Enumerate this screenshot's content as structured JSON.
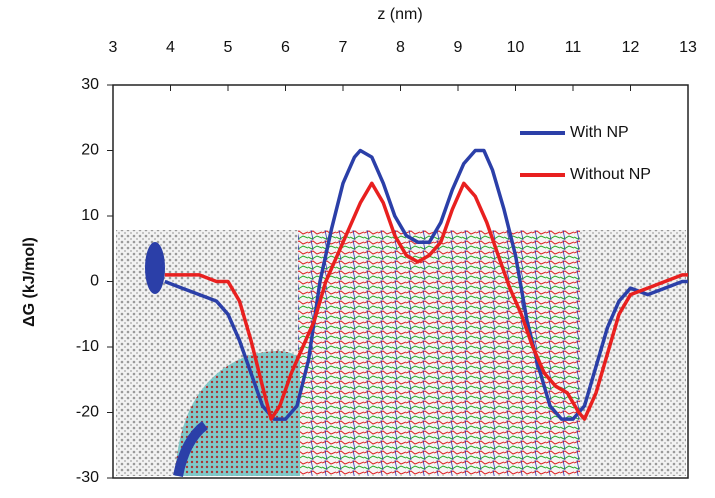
{
  "chart_data": {
    "type": "line",
    "x_label": "z (nm)",
    "y_label": "ΔG (kJ/mol)",
    "xlim": [
      3,
      13
    ],
    "xticks": [
      3,
      4,
      5,
      6,
      7,
      8,
      9,
      10,
      11,
      12,
      13
    ],
    "ylim": [
      -30,
      30
    ],
    "yticks": [
      30,
      20,
      10,
      0,
      -10,
      -20,
      -30
    ],
    "legend": "top-right",
    "series": [
      {
        "name": "With NP",
        "color": "#2b3fa8",
        "x": [
          3.9,
          4.2,
          4.5,
          4.8,
          5.0,
          5.2,
          5.4,
          5.6,
          5.8,
          6.0,
          6.2,
          6.4,
          6.6,
          6.8,
          7.0,
          7.2,
          7.3,
          7.5,
          7.7,
          7.9,
          8.1,
          8.3,
          8.5,
          8.7,
          8.9,
          9.1,
          9.3,
          9.45,
          9.6,
          9.8,
          10.0,
          10.2,
          10.4,
          10.6,
          10.8,
          11.0,
          11.2,
          11.4,
          11.6,
          11.8,
          12.0,
          12.3,
          12.6,
          12.9,
          13.0
        ],
        "values": [
          0,
          -1,
          -2,
          -3,
          -5,
          -9,
          -14,
          -19,
          -21,
          -21,
          -19,
          -12,
          0,
          8,
          15,
          19,
          20,
          19,
          15,
          10,
          7,
          6,
          6,
          9,
          14,
          18,
          20,
          20,
          17,
          11,
          4,
          -6,
          -13,
          -19,
          -21,
          -21,
          -19,
          -13,
          -7,
          -3,
          -1,
          -2,
          -1,
          0,
          0
        ]
      },
      {
        "name": "Without NP",
        "color": "#e8201f",
        "x": [
          3.9,
          4.2,
          4.5,
          4.8,
          5.0,
          5.2,
          5.4,
          5.6,
          5.75,
          5.9,
          6.1,
          6.3,
          6.5,
          6.7,
          6.9,
          7.1,
          7.3,
          7.5,
          7.7,
          7.9,
          8.1,
          8.3,
          8.5,
          8.7,
          8.9,
          9.1,
          9.3,
          9.5,
          9.7,
          9.9,
          10.1,
          10.3,
          10.5,
          10.7,
          10.9,
          11.1,
          11.2,
          11.4,
          11.6,
          11.8,
          12.0,
          12.3,
          12.6,
          12.9,
          13.0
        ],
        "values": [
          1,
          1,
          1,
          0,
          0,
          -3,
          -9,
          -16,
          -21,
          -19,
          -14,
          -10,
          -6,
          0,
          4,
          8,
          12,
          15,
          12,
          7,
          4,
          3,
          4,
          6,
          11,
          15,
          13,
          9,
          4,
          -1,
          -5,
          -10,
          -14,
          -16,
          -17,
          -20,
          -21,
          -17,
          -11,
          -5,
          -2,
          -1,
          0,
          1,
          1
        ]
      }
    ]
  }
}
